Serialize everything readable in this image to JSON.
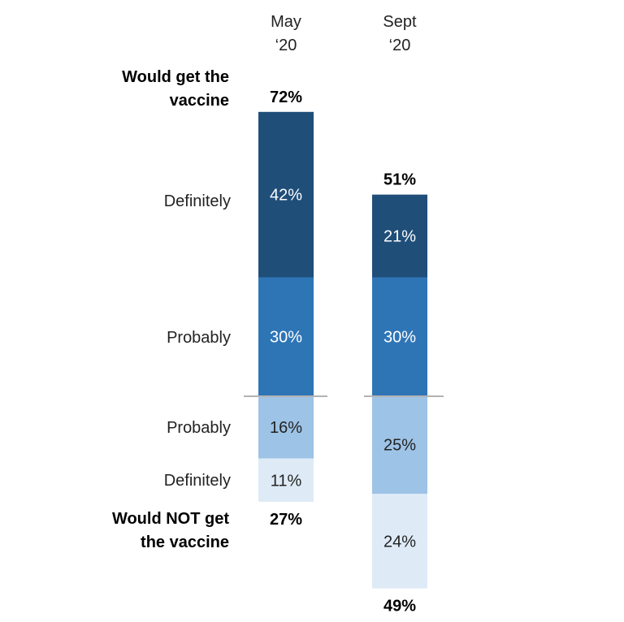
{
  "chart_data": {
    "type": "bar",
    "stacked": true,
    "diverging": true,
    "categories": [
      "May ‘20",
      "Sept ‘20"
    ],
    "category_header_lines": [
      [
        "May",
        "‘20"
      ],
      [
        "Sept",
        "‘20"
      ]
    ],
    "series": [
      {
        "name": "Would get the vaccine — Definitely",
        "side": "positive",
        "values": [
          42,
          21
        ],
        "color": "#1f4e79",
        "label_color": "#ffffff"
      },
      {
        "name": "Would get the vaccine — Probably",
        "side": "positive",
        "values": [
          30,
          30
        ],
        "color": "#2e75b6",
        "label_color": "#ffffff"
      },
      {
        "name": "Would NOT get the vaccine — Probably",
        "side": "negative",
        "values": [
          16,
          25
        ],
        "color": "#9dc3e6",
        "label_color": "#222222"
      },
      {
        "name": "Would NOT get the vaccine — Definitely",
        "side": "negative",
        "values": [
          11,
          24
        ],
        "color": "#deebf7",
        "label_color": "#222222"
      }
    ],
    "segment_labels": [
      [
        "42%",
        "21%"
      ],
      [
        "30%",
        "30%"
      ],
      [
        "16%",
        "25%"
      ],
      [
        "11%",
        "24%"
      ]
    ],
    "totals": {
      "would_get": {
        "label_lines": [
          "Would get the",
          "vaccine"
        ],
        "values": [
          "72%",
          "51%"
        ]
      },
      "would_not_get": {
        "label_lines": [
          "Would NOT get",
          "the vaccine"
        ],
        "values": [
          "27%",
          "49%"
        ]
      }
    },
    "row_labels": {
      "pos_definitely": "Definitely",
      "pos_probably": "Probably",
      "neg_probably": "Probably",
      "neg_definitely": "Definitely"
    },
    "legend": "none",
    "grid": false
  }
}
